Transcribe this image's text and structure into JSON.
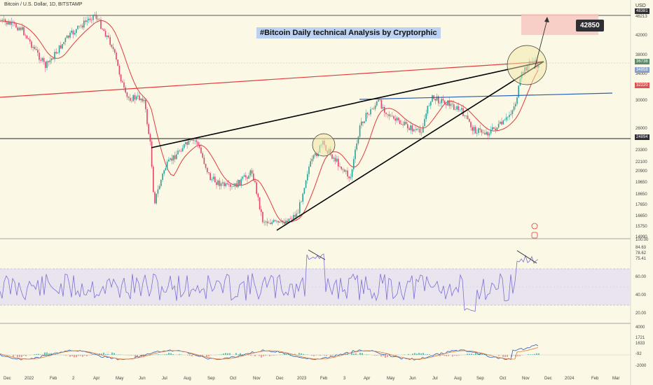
{
  "header": {
    "symbol_line": "Bitcoin / U.S. Dollar, 1D, BITSTAMP",
    "currency": "USD"
  },
  "chart_title": "#Bitcoin Daily technical Analysis by Cryptorphic",
  "target_label": "42850",
  "price_axis": {
    "ticks": [
      "46213",
      "42000",
      "38000",
      "34000",
      "30000",
      "26000",
      "23300",
      "22100",
      "20900",
      "19650",
      "18650",
      "17650",
      "16650",
      "15750",
      "14990"
    ],
    "tags": [
      {
        "text": "48381",
        "color": "#2f2f33"
      },
      {
        "text": "36738",
        "color": "#5a8a6a"
      },
      {
        "text": "34858",
        "color": "#8aa0cc"
      },
      {
        "text": "32220",
        "color": "#e05050"
      },
      {
        "text": "24894",
        "color": "#2f2f33"
      }
    ]
  },
  "rsi_axis": {
    "ticks": [
      "100.00",
      "84.63",
      "78.62",
      "75.41",
      "60.00",
      "40.00",
      "20.00"
    ]
  },
  "macd_axis": {
    "ticks": [
      "4000",
      "1721",
      "1633",
      "-92",
      "-2000"
    ]
  },
  "x_axis": {
    "labels": [
      "Dec",
      "2022",
      "Feb",
      "2",
      "Apr",
      "May",
      "Jun",
      "Jul",
      "Aug",
      "Sep",
      "Oct",
      "Nov",
      "Dec",
      "2023",
      "Feb",
      "3",
      "Apr",
      "May",
      "Jun",
      "Jul",
      "Aug",
      "Sep",
      "Oct",
      "Nov",
      "Dec",
      "2024",
      "Feb",
      "Mar"
    ]
  },
  "colors": {
    "background": "#fbf8e6",
    "candle_up": "#2aa198",
    "candle_down": "#e0456a",
    "ma_line": "#e03c3c",
    "trend_line": "#000000",
    "resistance_blue": "#2b5fb6",
    "target_box": "#f6c8c0",
    "rsi_line": "#7b6fd6",
    "rsi_band": "#e6dff0"
  }
}
